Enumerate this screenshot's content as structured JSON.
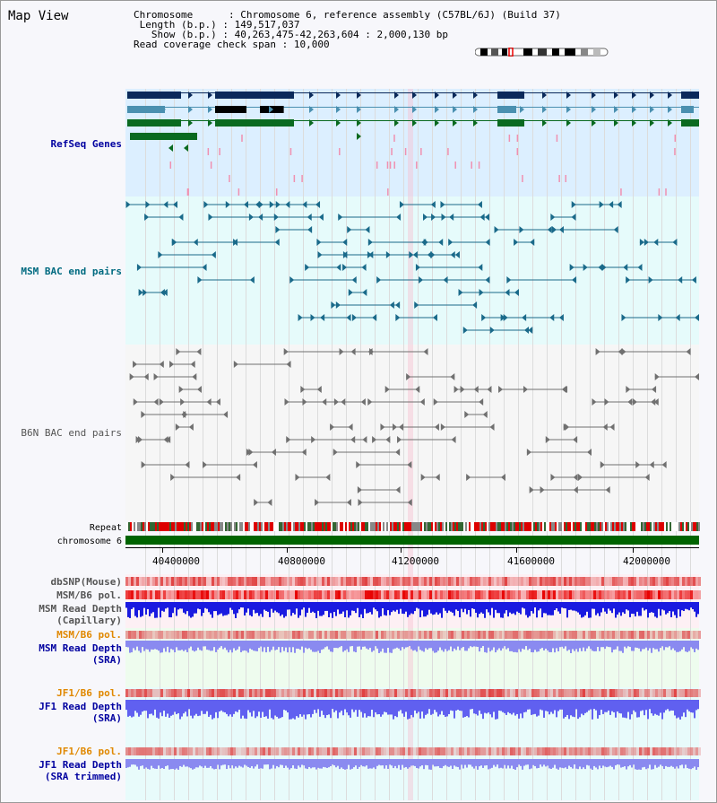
{
  "page_title": "Map View",
  "info": {
    "chromosome_label": "Chromosome",
    "chromosome_value": "Chromosome 6, reference assembly (C57BL/6J) (Build 37)",
    "length_label": "Length (b.p.)",
    "length_value": "149,517,037",
    "show_label": "Show (b.p.)",
    "show_value": "40,263,475-42,263,604 : 2,000,130 bp",
    "coverage_label": "Read coverage check span",
    "coverage_value": "10,000"
  },
  "tracks": {
    "refseq": "RefSeq Genes",
    "msm_bac": "MSM BAC end pairs",
    "b6n_bac": "B6N BAC end pairs",
    "repeat": "Repeat",
    "chromosome": "chromosome 6",
    "dbsnp": "dbSNP(Mouse)",
    "msm_b6_pol": "MSM/B6 pol.",
    "msm_depth_cap_1": "MSM Read Depth",
    "msm_depth_cap_2": "(Capillary)",
    "msm_b6_pol2": "MSM/B6 pol.",
    "msm_depth_sra_1": "MSM Read Depth",
    "msm_depth_sra_2": "(SRA)",
    "jf1_b6_pol": "JF1/B6 pol.",
    "jf1_depth_sra_1": "JF1 Read Depth",
    "jf1_depth_sra_2": "(SRA)",
    "jf1_b6_pol2": "JF1/B6 pol.",
    "jf1_depth_trim_1": "JF1 Read Depth",
    "jf1_depth_trim_2": "(SRA trimmed)"
  },
  "axis": {
    "ticks": [
      "40400000",
      "40800000",
      "41200000",
      "41600000",
      "42000000"
    ]
  },
  "colors": {
    "refseq_bg": "#dcefff",
    "bac_bg": "#e6fbfb",
    "msm_bac_line": "#1a6a8a",
    "b6n_bac_line": "#707070",
    "chromosome_bar": "#006400",
    "label_blue": "#0000a0",
    "label_teal": "#006a80",
    "label_orange": "#e08800",
    "label_gray": "#555555"
  }
}
